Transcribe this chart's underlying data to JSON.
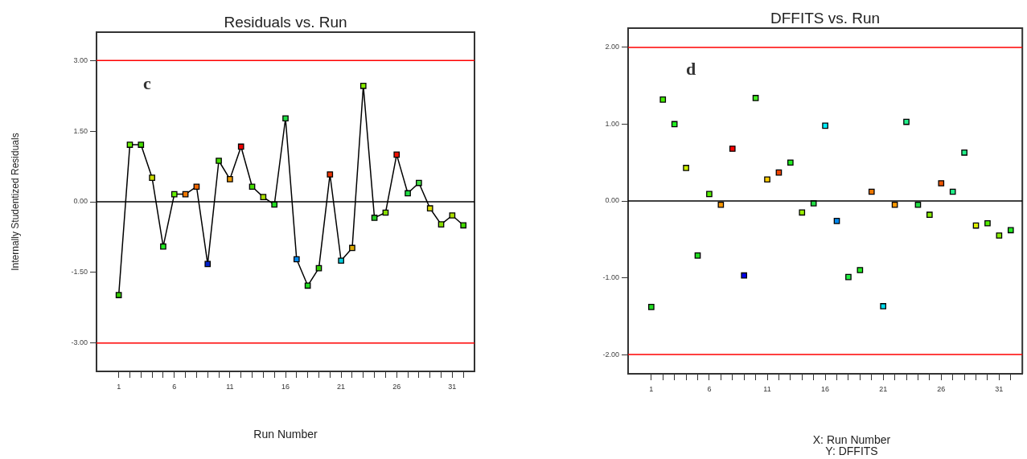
{
  "chart_data": [
    {
      "type": "line",
      "title": "Residuals vs. Run",
      "xlabel": "Run Number",
      "ylabel": "Internally Studentized Residuals",
      "annotations": [
        "c"
      ],
      "x": [
        1,
        2,
        3,
        4,
        5,
        6,
        7,
        8,
        9,
        10,
        11,
        12,
        13,
        14,
        15,
        16,
        17,
        18,
        19,
        20,
        21,
        22,
        23,
        24,
        25,
        26,
        27,
        28,
        29,
        30,
        31,
        32
      ],
      "series": [
        {
          "color": "#000000",
          "colors": [
            "#33cc00",
            "#66ee00",
            "#44dd00",
            "#ccdd00",
            "#22ee22",
            "#66ee00",
            "#ee7700",
            "#ee6600",
            "#0022cc",
            "#44dd00",
            "#ee9900",
            "#ee0000",
            "#44dd00",
            "#aadd00",
            "#22dd22",
            "#22dd44",
            "#0088ee",
            "#22dd22",
            "#33cc00",
            "#ee3300",
            "#00ccdd",
            "#ddaa00",
            "#88ee00",
            "#22cc22",
            "#88dd00",
            "#ee1100",
            "#22dd44",
            "#44dd44",
            "#dddd00",
            "#88dd00",
            "#aadd00",
            "#44dd00"
          ],
          "values": [
            -1.98,
            1.21,
            1.21,
            0.51,
            -0.95,
            0.16,
            0.16,
            0.32,
            -1.32,
            0.87,
            0.48,
            1.17,
            0.32,
            0.1,
            -0.06,
            1.77,
            -1.22,
            -1.78,
            -1.41,
            0.58,
            -1.25,
            -0.98,
            2.46,
            -0.34,
            -0.23,
            1.0,
            0.18,
            0.4,
            -0.14,
            -0.48,
            -0.29,
            -0.5
          ]
        }
      ],
      "xlim": [
        -1,
        33
      ],
      "xticks": [
        1,
        {
          "value": 2,
          "label": null
        },
        {
          "value": 3,
          "label": null
        },
        {
          "value": 4,
          "label": null
        },
        {
          "value": 5,
          "label": null
        },
        6,
        {
          "value": 7,
          "label": null
        },
        {
          "value": 8,
          "label": null
        },
        {
          "value": 9,
          "label": null
        },
        {
          "value": 10,
          "label": null
        },
        11,
        {
          "value": 12,
          "label": null
        },
        {
          "value": 13,
          "label": null
        },
        {
          "value": 14,
          "label": null
        },
        {
          "value": 15,
          "label": null
        },
        16,
        {
          "value": 17,
          "label": null
        },
        {
          "value": 18,
          "label": null
        },
        {
          "value": 19,
          "label": null
        },
        {
          "value": 20,
          "label": null
        },
        21,
        {
          "value": 22,
          "label": null
        },
        {
          "value": 23,
          "label": null
        },
        {
          "value": 24,
          "label": null
        },
        {
          "value": 25,
          "label": null
        },
        26,
        {
          "value": 27,
          "label": null
        },
        {
          "value": 28,
          "label": null
        },
        {
          "value": 29,
          "label": null
        },
        {
          "value": 30,
          "label": null
        },
        31,
        {
          "value": 32,
          "label": null
        }
      ],
      "ylim": [
        -3.6,
        3.6
      ],
      "yticks": [
        {
          "value": -3,
          "label": "-3.00"
        },
        {
          "value": -1.5,
          "label": "-1.50"
        },
        {
          "value": 0,
          "label": "0.00"
        },
        {
          "value": 1.5,
          "label": "1.50"
        },
        {
          "value": 3,
          "label": "3.00"
        }
      ],
      "ref_lines": [
        {
          "axis": "y",
          "value": 3,
          "color": "#ff0000"
        },
        {
          "axis": "y",
          "value": -3,
          "color": "#ff0000"
        },
        {
          "axis": "y",
          "value": 0,
          "color": "#000000"
        }
      ],
      "marker": "square",
      "grid": false,
      "legend": false
    },
    {
      "type": "scatter",
      "title": "DFFITS vs. Run",
      "xlabel": "X: Run Number",
      "annotations": [
        "d",
        "Y: DFFITS"
      ],
      "x": [
        1,
        2,
        3,
        4,
        5,
        6,
        7,
        8,
        9,
        10,
        11,
        12,
        13,
        14,
        15,
        16,
        17,
        18,
        19,
        20,
        21,
        22,
        23,
        24,
        25,
        26,
        27,
        28,
        29,
        30,
        31,
        32
      ],
      "series": [
        {
          "color": "#22dd22",
          "colors": [
            "#22dd22",
            "#44ee00",
            "#22ee22",
            "#ccee00",
            "#22dd22",
            "#55ee00",
            "#ff9900",
            "#ff0000",
            "#0000ee",
            "#44ee22",
            "#ffcc00",
            "#ee4400",
            "#22ee22",
            "#99ee00",
            "#22dd44",
            "#00eeff",
            "#0088ee",
            "#22ee44",
            "#22ee22",
            "#ee7700",
            "#00ddee",
            "#ff9900",
            "#22ee88",
            "#22dd44",
            "#88ee00",
            "#ee5500",
            "#22ee88",
            "#22ee88",
            "#ddee00",
            "#55ee00",
            "#88ee00",
            "#22ee22"
          ],
          "values": [
            -1.38,
            1.32,
            1.0,
            0.43,
            -0.71,
            0.09,
            -0.05,
            0.68,
            -0.97,
            1.34,
            0.28,
            0.37,
            0.5,
            -0.15,
            -0.03,
            0.98,
            -0.26,
            -0.99,
            -0.9,
            0.12,
            -1.37,
            -0.05,
            1.03,
            -0.05,
            -0.18,
            0.23,
            0.12,
            0.63,
            -0.32,
            -0.29,
            -0.45,
            -0.38
          ]
        }
      ],
      "xlim": [
        -1,
        33
      ],
      "xticks": [
        1,
        {
          "value": 2,
          "label": null
        },
        {
          "value": 3,
          "label": null
        },
        {
          "value": 4,
          "label": null
        },
        {
          "value": 5,
          "label": null
        },
        6,
        {
          "value": 7,
          "label": null
        },
        {
          "value": 8,
          "label": null
        },
        {
          "value": 9,
          "label": null
        },
        {
          "value": 10,
          "label": null
        },
        11,
        {
          "value": 12,
          "label": null
        },
        {
          "value": 13,
          "label": null
        },
        {
          "value": 14,
          "label": null
        },
        {
          "value": 15,
          "label": null
        },
        16,
        {
          "value": 17,
          "label": null
        },
        {
          "value": 18,
          "label": null
        },
        {
          "value": 19,
          "label": null
        },
        {
          "value": 20,
          "label": null
        },
        21,
        {
          "value": 22,
          "label": null
        },
        {
          "value": 23,
          "label": null
        },
        {
          "value": 24,
          "label": null
        },
        {
          "value": 25,
          "label": null
        },
        26,
        {
          "value": 27,
          "label": null
        },
        {
          "value": 28,
          "label": null
        },
        {
          "value": 29,
          "label": null
        },
        {
          "value": 30,
          "label": null
        },
        31,
        {
          "value": 32,
          "label": null
        }
      ],
      "ylim": [
        -2.25,
        2.25
      ],
      "yticks": [
        {
          "value": -2,
          "label": "-2.00"
        },
        {
          "value": -1,
          "label": "-1.00"
        },
        {
          "value": 0,
          "label": "0.00"
        },
        {
          "value": 1,
          "label": "1.00"
        },
        {
          "value": 2,
          "label": "2.00"
        }
      ],
      "ref_lines": [
        {
          "axis": "y",
          "value": 2,
          "color": "#ff0000"
        },
        {
          "axis": "y",
          "value": -2,
          "color": "#ff0000"
        },
        {
          "axis": "y",
          "value": 0,
          "color": "#000000"
        }
      ],
      "marker": "square",
      "grid": false,
      "legend": false
    }
  ]
}
